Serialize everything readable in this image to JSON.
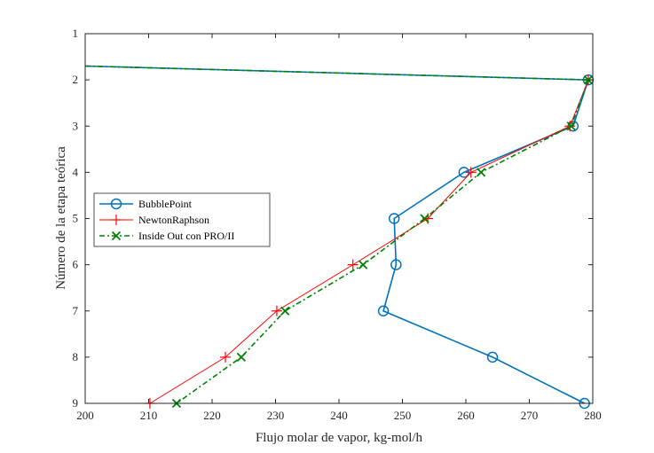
{
  "chart_data": {
    "type": "line",
    "xlabel": "Flujo molar de vapor, kg-mol/h",
    "ylabel": "Número de la etapa teórica",
    "xlim": [
      200,
      280
    ],
    "ylim": [
      1,
      9
    ],
    "y_reversed": true,
    "x_ticks": [
      200,
      210,
      220,
      230,
      240,
      250,
      260,
      270,
      280
    ],
    "y_ticks": [
      1,
      2,
      3,
      4,
      5,
      6,
      7,
      8,
      9
    ],
    "grid": false,
    "legend_position": "middle-left",
    "series": [
      {
        "name": "BubblePoint",
        "color": "#0072BD",
        "marker": "circle",
        "line_style": "solid",
        "points": [
          {
            "x": 279.3,
            "y": 2
          },
          {
            "x": 276.9,
            "y": 3
          },
          {
            "x": 259.7,
            "y": 4
          },
          {
            "x": 248.7,
            "y": 5
          },
          {
            "x": 249.0,
            "y": 6
          },
          {
            "x": 247.0,
            "y": 7
          },
          {
            "x": 264.2,
            "y": 8
          },
          {
            "x": 278.7,
            "y": 9
          }
        ],
        "extra_segment": [
          {
            "x": 200,
            "y": 1.7
          },
          {
            "x": 279.3,
            "y": 2
          }
        ]
      },
      {
        "name": "NewtonRaphson",
        "color": "#FF0000",
        "marker": "plus",
        "line_style": "solid",
        "points": [
          {
            "x": 279.3,
            "y": 2
          },
          {
            "x": 276.4,
            "y": 3
          },
          {
            "x": 260.8,
            "y": 4
          },
          {
            "x": 254.0,
            "y": 5
          },
          {
            "x": 242.2,
            "y": 6
          },
          {
            "x": 230.2,
            "y": 7
          },
          {
            "x": 222.1,
            "y": 8
          },
          {
            "x": 210.2,
            "y": 9
          }
        ]
      },
      {
        "name": "Inside Out con PRO/II",
        "color": "#008000",
        "marker": "x",
        "line_style": "dash-dot",
        "points": [
          {
            "x": 279.3,
            "y": 2
          },
          {
            "x": 276.6,
            "y": 3
          },
          {
            "x": 262.4,
            "y": 4
          },
          {
            "x": 253.5,
            "y": 5
          },
          {
            "x": 243.8,
            "y": 6
          },
          {
            "x": 231.5,
            "y": 7
          },
          {
            "x": 224.6,
            "y": 8
          },
          {
            "x": 214.4,
            "y": 9
          }
        ],
        "extra_segment": [
          {
            "x": 200,
            "y": 1.7
          },
          {
            "x": 279.3,
            "y": 2
          }
        ]
      }
    ]
  }
}
